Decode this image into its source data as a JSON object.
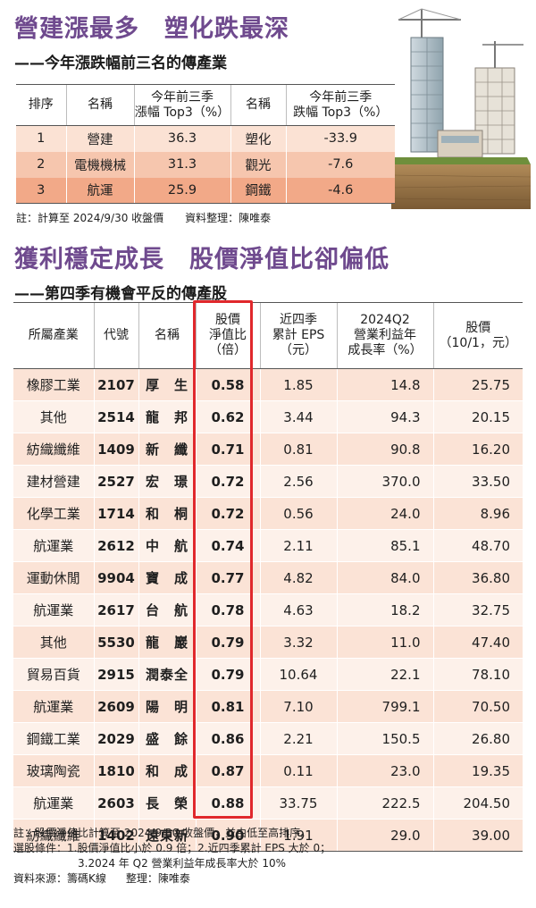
{
  "section1": {
    "title": "營建漲最多　塑化跌最深",
    "subtitle": "——今年漲跌幅前三名的傳產業",
    "headers": {
      "rank": "排序",
      "name": "名稱",
      "rise": "今年前三季\n漲幅 Top3（%）",
      "name2": "名稱",
      "fall": "今年前三季\n跌幅 Top3（%）"
    },
    "rows": [
      {
        "rank": "1",
        "rise_name": "營建",
        "rise": "36.3",
        "fall_name": "塑化",
        "fall": "-33.9"
      },
      {
        "rank": "2",
        "rise_name": "電機機械",
        "rise": "31.3",
        "fall_name": "觀光",
        "fall": "-7.6"
      },
      {
        "rank": "3",
        "rise_name": "航運",
        "rise": "25.9",
        "fall_name": "鋼鐵",
        "fall": "-4.6"
      }
    ],
    "note": "註：計算至 2024/9/30 收盤價",
    "compiled_by": "資料整理：陳唯泰"
  },
  "section2": {
    "title": "獲利穩定成長　股價淨值比卻偏低",
    "subtitle": "——第四季有機會平反的傳產股",
    "headers": {
      "industry": "所屬產業",
      "code": "代號",
      "name": "名稱",
      "pbr": "股價\n淨值比\n（倍）",
      "eps": "近四季\n累計 EPS\n（元）",
      "growth": "2024Q2\n營業利益年\n成長率（%）",
      "price": "股價\n（10/1，元）"
    },
    "rows": [
      {
        "industry": "橡膠工業",
        "code": "2107",
        "name": "厚　生",
        "pbr": "0.58",
        "eps": "1.85",
        "growth": "14.8",
        "price": "25.75"
      },
      {
        "industry": "其他",
        "code": "2514",
        "name": "龍　邦",
        "pbr": "0.62",
        "eps": "3.44",
        "growth": "94.3",
        "price": "20.15"
      },
      {
        "industry": "紡織纖維",
        "code": "1409",
        "name": "新　纖",
        "pbr": "0.71",
        "eps": "0.81",
        "growth": "90.8",
        "price": "16.20"
      },
      {
        "industry": "建材營建",
        "code": "2527",
        "name": "宏　璟",
        "pbr": "0.72",
        "eps": "2.56",
        "growth": "370.0",
        "price": "33.50"
      },
      {
        "industry": "化學工業",
        "code": "1714",
        "name": "和　桐",
        "pbr": "0.72",
        "eps": "0.56",
        "growth": "24.0",
        "price": "8.96"
      },
      {
        "industry": "航運業",
        "code": "2612",
        "name": "中　航",
        "pbr": "0.74",
        "eps": "2.11",
        "growth": "85.1",
        "price": "48.70"
      },
      {
        "industry": "運動休閒",
        "code": "9904",
        "name": "寶　成",
        "pbr": "0.77",
        "eps": "4.82",
        "growth": "84.0",
        "price": "36.80"
      },
      {
        "industry": "航運業",
        "code": "2617",
        "name": "台　航",
        "pbr": "0.78",
        "eps": "4.63",
        "growth": "18.2",
        "price": "32.75"
      },
      {
        "industry": "其他",
        "code": "5530",
        "name": "龍　巖",
        "pbr": "0.79",
        "eps": "3.32",
        "growth": "11.0",
        "price": "47.40"
      },
      {
        "industry": "貿易百貨",
        "code": "2915",
        "name": "潤泰全",
        "pbr": "0.79",
        "eps": "10.64",
        "growth": "22.1",
        "price": "78.10"
      },
      {
        "industry": "航運業",
        "code": "2609",
        "name": "陽　明",
        "pbr": "0.81",
        "eps": "7.10",
        "growth": "799.1",
        "price": "70.50"
      },
      {
        "industry": "鋼鐵工業",
        "code": "2029",
        "name": "盛　餘",
        "pbr": "0.86",
        "eps": "2.21",
        "growth": "150.5",
        "price": "26.80"
      },
      {
        "industry": "玻璃陶瓷",
        "code": "1810",
        "name": "和　成",
        "pbr": "0.87",
        "eps": "0.11",
        "growth": "23.0",
        "price": "19.35"
      },
      {
        "industry": "航運業",
        "code": "2603",
        "name": "長　榮",
        "pbr": "0.88",
        "eps": "33.75",
        "growth": "222.5",
        "price": "204.50"
      },
      {
        "industry": "紡織纖維",
        "code": "1402",
        "name": "遠東新",
        "pbr": "0.90",
        "eps": "1.91",
        "growth": "29.0",
        "price": "39.00"
      }
    ],
    "notes": {
      "note": "註：股價淨值比計算至 2024/9/30 收盤價，並由低至高排序。",
      "criteria_1": "選股條件：1.股價淨值比小於 0.9 倍；2.近四季累計 EPS 大於 0；",
      "criteria_2": "3.2024 年 Q2 營業利益年成長率大於 10%",
      "source": "資料來源：籌碼K線",
      "compiled_by": "整理：陳唯泰"
    },
    "highlight_color": "#e0282c"
  },
  "colors": {
    "title": "#6f4a8e",
    "row_odd": "#fbe3d6",
    "row_even": "#fdf1ea",
    "rank1": "#fbe2d4",
    "rank2": "#f6c6ae",
    "rank3": "#f2a988"
  }
}
